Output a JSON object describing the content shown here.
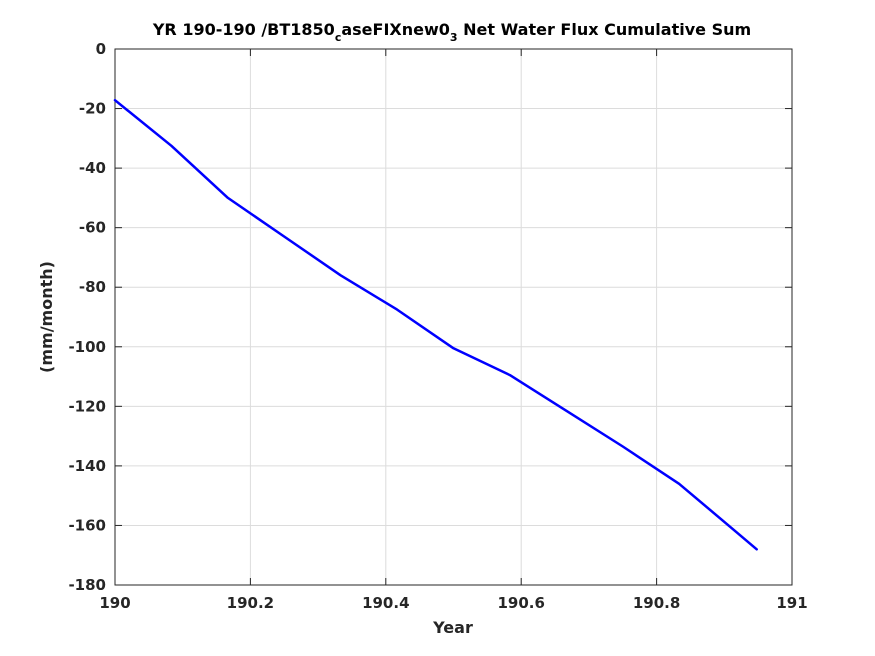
{
  "chart_data": {
    "type": "line",
    "title": "YR 190-190 /BT1850_caseFIXnew0_3 Net Water Flux Cumulative Sum",
    "title_parts": {
      "part1": "YR 190-190 /BT1850",
      "sub1": "c",
      "part2": "aseFIXnew0",
      "sub2": "3",
      "part3": " Net Water Flux Cumulative Sum"
    },
    "xlabel": "Year",
    "ylabel": "(mm/month)",
    "xlim": [
      190,
      191
    ],
    "ylim": [
      -180,
      0
    ],
    "x_ticks": [
      190,
      190.2,
      190.4,
      190.6,
      190.8,
      191
    ],
    "x_tick_labels": [
      "190",
      "190.2",
      "190.4",
      "190.6",
      "190.8",
      "191"
    ],
    "y_ticks": [
      0,
      -20,
      -40,
      -60,
      -80,
      -100,
      -120,
      -140,
      -160,
      -180
    ],
    "y_tick_labels": [
      "0",
      "-20",
      "-40",
      "-60",
      "-80",
      "-100",
      "-120",
      "-140",
      "-160",
      "-180"
    ],
    "grid": true,
    "series": [
      {
        "color": "#0000ff",
        "x": [
          190.0,
          190.0833,
          190.1667,
          190.25,
          190.3333,
          190.4167,
          190.5,
          190.5833,
          190.6667,
          190.75,
          190.8333,
          190.9167,
          190.9479
        ],
        "y": [
          -17.2,
          -32.5,
          -50.0,
          -63.0,
          -76.0,
          -87.5,
          -100.5,
          -109.5,
          -121.5,
          -133.5,
          -146.0,
          -162.0,
          -168.0
        ]
      }
    ]
  }
}
